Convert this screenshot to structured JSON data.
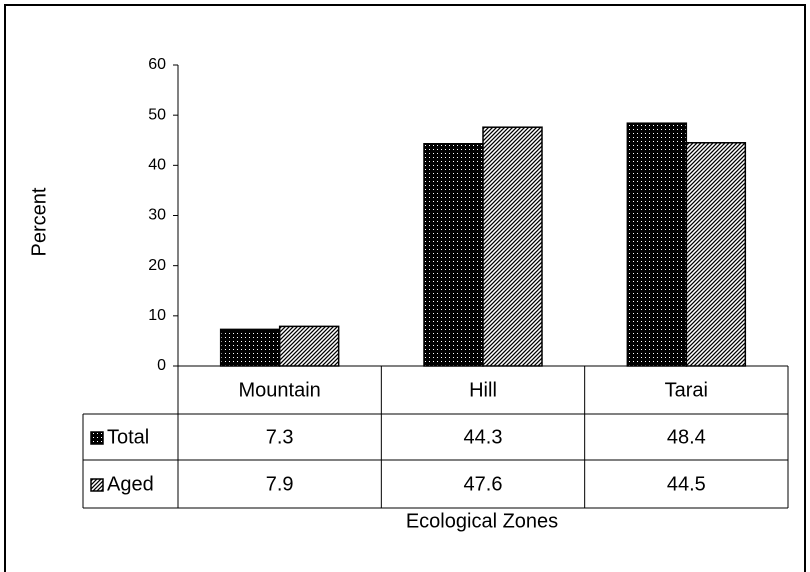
{
  "chart_data": {
    "type": "bar",
    "x_label": "Ecological Zones",
    "y_label": "Percent",
    "categories": [
      "Mountain",
      "Hill",
      "Tarai"
    ],
    "series": [
      {
        "name": "Total",
        "color": "#000000",
        "pattern": "dots",
        "values": [
          7.3,
          44.3,
          48.4
        ]
      },
      {
        "name": "Aged",
        "color": "#000000",
        "pattern": "diagonal",
        "values": [
          7.9,
          47.6,
          44.5
        ]
      }
    ],
    "ylim": [
      0,
      60
    ],
    "yticks": [
      0,
      10,
      20,
      30,
      40,
      50,
      60
    ],
    "data_table": true
  }
}
